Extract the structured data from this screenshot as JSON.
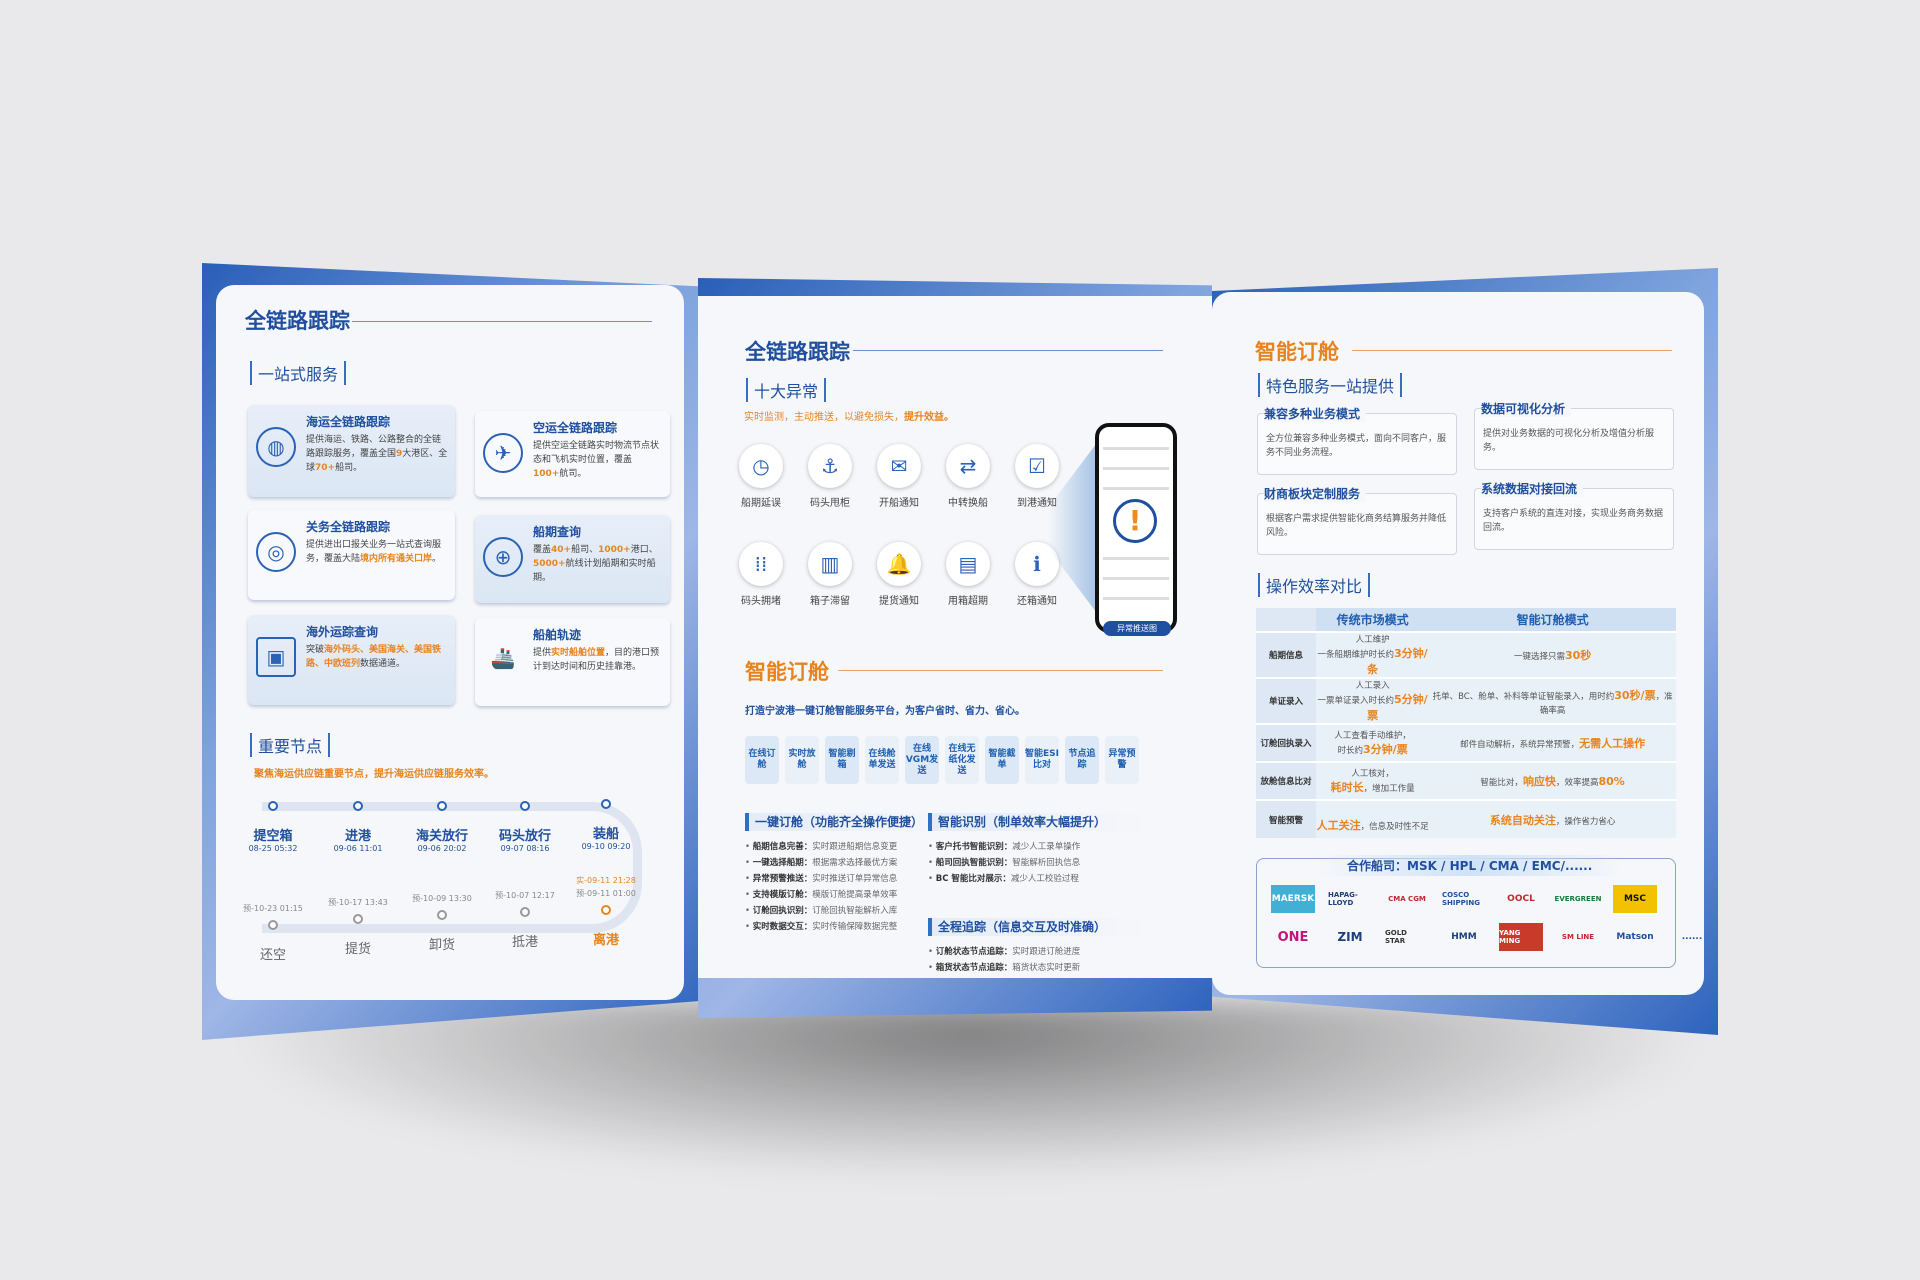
{
  "left_panel": {
    "title": "全链路跟踪",
    "subtitle": "一站式服务",
    "cards": [
      {
        "title": "海运全链路跟踪",
        "desc_a": "提供海运、铁路、公路整合的全链路跟踪服务，覆盖全国",
        "hl1": "9",
        "desc_b": "大港区、全球",
        "hl2": "70+",
        "desc_c": "船司。",
        "icon": "globe-icon"
      },
      {
        "title": "空运全链路跟踪",
        "desc_a": "提供空运全链路实时物流节点状态和飞机实时位置，覆盖",
        "hl1": "100+",
        "desc_b": "航司。",
        "icon": "airplane-globe-icon"
      },
      {
        "title": "关务全链路跟踪",
        "desc_a": "提供进出口报关业务一站式查询服务，覆盖大陆",
        "hl1": "境内所有通关口岸",
        "desc_b": "。",
        "icon": "customs-target-icon"
      },
      {
        "title": "船期查询",
        "desc_a": "覆盖",
        "hl1": "40+",
        "desc_b": "船司、",
        "hl2": "1000+",
        "desc_c": "港口、",
        "hl3": "5000+",
        "desc_d": "航线计划船期和实时船期。",
        "icon": "network-globe-icon"
      },
      {
        "title": "海外运踪查询",
        "desc_a": "突破",
        "hl1": "海外码头、美国海关、美国铁路、中欧班列",
        "desc_b": "数据通道。",
        "icon": "monitor-icon"
      },
      {
        "title": "船舶轨迹",
        "desc_a": "提供",
        "hl1": "实时船舶位置",
        "desc_b": "，目的港口预计到达时间和历史挂靠港。",
        "icon": "container-ship-icon"
      }
    ],
    "nodes_title": "重要节点",
    "nodes_subtitle": "聚焦海运供应链重要节点，提升海运供应链服务效率。",
    "nodes_top": [
      {
        "label": "提空箱",
        "time": "08-25 05:32"
      },
      {
        "label": "进港",
        "time": "09-06 11:01"
      },
      {
        "label": "海关放行",
        "time": "09-06 20:02"
      },
      {
        "label": "码头放行",
        "time": "09-07 08:16"
      },
      {
        "label": "装船",
        "time": "09-10 09:20"
      }
    ],
    "nodes_bottom": [
      {
        "label": "还空",
        "pre": "预-10-23 01:15"
      },
      {
        "label": "提货",
        "pre": "预-10-17 13:43"
      },
      {
        "label": "卸货",
        "pre": "预-10-09 13:30"
      },
      {
        "label": "抵港",
        "pre": "预-10-07 12:17"
      },
      {
        "label": "离港",
        "pre": "预-09-11 01:00",
        "actual": "实-09-11 21:28"
      }
    ]
  },
  "middle_panel": {
    "title": "全链路跟踪",
    "subtitle": "十大异常",
    "tagline_a": "实时监测，主动推送，以避免损失，",
    "tagline_b": "提升效益。",
    "exceptions": [
      {
        "label": "船期延误",
        "icon": "clock-icon"
      },
      {
        "label": "码头甩柜",
        "icon": "anchor-icon"
      },
      {
        "label": "开船通知",
        "icon": "message-icon"
      },
      {
        "label": "中转换船",
        "icon": "transfer-icon"
      },
      {
        "label": "到港通知",
        "icon": "checkbox-icon"
      },
      {
        "label": "码头拥堵",
        "icon": "grid-dots-icon"
      },
      {
        "label": "箱子滞留",
        "icon": "container-alert-icon"
      },
      {
        "label": "提货通知",
        "icon": "bell-icon"
      },
      {
        "label": "用箱超期",
        "icon": "document-clock-icon"
      },
      {
        "label": "还箱通知",
        "icon": "info-icon"
      }
    ],
    "phone_tag": "异常推送图",
    "booking_title": "智能订舱",
    "booking_subtitle": "打造宁波港一键订舱智能服务平台，为客户省时、省力、省心。",
    "steps": [
      "在线订舱",
      "实时放舱",
      "智能剔箱",
      "在线舱单发送",
      "在线VGM发送",
      "在线无纸化发送",
      "智能截单",
      "智能ESI比对",
      "节点追踪",
      "异常预警"
    ],
    "sections": [
      {
        "title": "一键订舱（功能齐全操作便捷）",
        "items": [
          {
            "k": "船期信息完善：",
            "v": "实时跟进船期信息变更"
          },
          {
            "k": "一键选择船期：",
            "v": "根据需求选择最优方案"
          },
          {
            "k": "异常预警推送：",
            "v": "实时推送订单异常信息"
          },
          {
            "k": "支持模版订舱：",
            "v": "模版订舱提高录单效率"
          },
          {
            "k": "订舱回执识别：",
            "v": "订舱回执智能解析入库"
          },
          {
            "k": "实时数据交互：",
            "v": "实时传输保障数据完整"
          }
        ]
      },
      {
        "title": "智能识别（制单效率大幅提升）",
        "items": [
          {
            "k": "客户托书智能识别：",
            "v": "减少人工录单操作"
          },
          {
            "k": "船司回执智能识别：",
            "v": "智能解析回执信息"
          },
          {
            "k": "BC 智能比对展示：",
            "v": "减少人工校验过程"
          }
        ]
      },
      {
        "title": "全程追踪（信息交互及时准确）",
        "items": [
          {
            "k": "订舱状态节点追踪：",
            "v": "实时跟进订舱进度"
          },
          {
            "k": "箱货状态节点追踪：",
            "v": "箱货状态实时更新"
          }
        ]
      }
    ]
  },
  "right_panel": {
    "title": "智能订舱",
    "subtitle": "特色服务一站提供",
    "features": [
      {
        "title": "兼容多种业务模式",
        "desc": "全方位兼容多种业务模式，面向不同客户，服务不同业务流程。"
      },
      {
        "title": "数据可视化分析",
        "desc": "提供对业务数据的可视化分析及增值分析服务。"
      },
      {
        "title": "财商板块定制服务",
        "desc": "根据客户需求提供智能化商务结算服务并降低风险。"
      },
      {
        "title": "系统数据对接回流",
        "desc": "支持客户系统的直连对接，实现业务商务数据回流。"
      }
    ],
    "compare_title": "操作效率对比",
    "table": {
      "headers": [
        "传统市场模式",
        "智能订舱模式"
      ],
      "rows": [
        {
          "name": "船期信息",
          "trad_a": "人工维护",
          "trad_b": "一条船期维护时长约",
          "trad_hl": "3分钟/条",
          "smart_a": "一键选择只需",
          "smart_hl": "30秒",
          "smart_b": ""
        },
        {
          "name": "单证录入",
          "trad_a": "人工录入",
          "trad_b": "一票单证录入时长约",
          "trad_hl": "5分钟/票",
          "smart_a": "托单、BC、舱单、补料等单证智能录入，用时约",
          "smart_hl": "30秒/票",
          "smart_b": "，准确率高"
        },
        {
          "name": "订舱回执录入",
          "trad_a": "人工查看手动维护，",
          "trad_b": "时长约",
          "trad_hl": "3分钟/票",
          "smart_a": "邮件自动解析，系统异常预警，",
          "smart_hl": "无需人工操作",
          "smart_b": ""
        },
        {
          "name": "放舱信息比对",
          "trad_a": "人工核对，",
          "trad_b": "",
          "trad_hl": "耗时长",
          "trad_c": "，增加工作量",
          "smart_a": "智能比对，",
          "smart_hl": "响应快",
          "smart_b": "，效率提高",
          "smart_hl2": "80%"
        },
        {
          "name": "智能预警",
          "trad_a": "",
          "trad_b": "",
          "trad_hl": "人工关注",
          "trad_c": "，信息及时性不足",
          "smart_a": "",
          "smart_hl": "系统自动关注",
          "smart_b": "，操作省力省心"
        }
      ]
    },
    "partners_title": "合作船司：MSK / HPL / CMA / EMC/......",
    "partners": [
      "MAERSK",
      "HAPAG-LLOYD",
      "CMA CGM",
      "COSCO SHIPPING",
      "OOCL",
      "EVERGREEN",
      "MSC",
      "ONE",
      "ZIM",
      "GOLD STAR",
      "HMM",
      "YANG MING",
      "SM LINE",
      "Matson",
      "......"
    ],
    "colors": {
      "blue": "#1f4f9e",
      "orange": "#e8841f",
      "background": "#e9e9eb"
    }
  }
}
